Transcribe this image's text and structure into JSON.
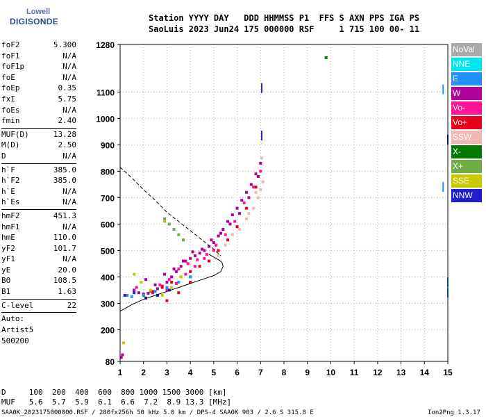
{
  "logo": {
    "line1": "Lowell",
    "line2": "DIGISONDE"
  },
  "header": {
    "row1": "Station YYYY DAY   DDD HHMMSS P1  FFS S AXN PPS IGA PS",
    "row2": "SaoLuis 2023 Jun24 175 000000 RSF     1 715 100 00- 11"
  },
  "params": {
    "group1": [
      {
        "name": "foF2",
        "value": "5.300"
      },
      {
        "name": "foF1",
        "value": "N/A"
      },
      {
        "name": "foF1p",
        "value": "N/A"
      },
      {
        "name": "foE",
        "value": "N/A"
      },
      {
        "name": "foEp",
        "value": "0.35"
      },
      {
        "name": "fxI",
        "value": "5.75"
      },
      {
        "name": "foEs",
        "value": "N/A"
      },
      {
        "name": "fmin",
        "value": "2.40"
      }
    ],
    "group2": [
      {
        "name": "MUF(D)",
        "value": "13.28"
      },
      {
        "name": "M(D)",
        "value": "2.50"
      },
      {
        "name": "D",
        "value": "N/A"
      }
    ],
    "group3": [
      {
        "name": "h`F",
        "value": "385.0"
      },
      {
        "name": "h`F2",
        "value": "385.0"
      },
      {
        "name": "h`E",
        "value": "N/A"
      },
      {
        "name": "h`Es",
        "value": "N/A"
      }
    ],
    "group4": [
      {
        "name": "hmF2",
        "value": "451.3"
      },
      {
        "name": "hmF1",
        "value": "N/A"
      },
      {
        "name": "hmE",
        "value": "110.0"
      },
      {
        "name": "yF2",
        "value": "101.7"
      },
      {
        "name": "yF1",
        "value": "N/A"
      },
      {
        "name": "yE",
        "value": "20.0"
      },
      {
        "name": "B0",
        "value": "108.5"
      },
      {
        "name": "B1",
        "value": "1.63"
      }
    ],
    "clevel": {
      "name": "C-level",
      "value": "22"
    },
    "auto": [
      "Auto:",
      "Artist5",
      "500200"
    ]
  },
  "legend": [
    {
      "label": "NoVal",
      "color": "#a9a9a9"
    },
    {
      "label": "NNE",
      "color": "#00e5ee"
    },
    {
      "label": "E",
      "color": "#1e90ff"
    },
    {
      "label": "W",
      "color": "#b0009a"
    },
    {
      "label": "Vo-",
      "color": "#ff1493"
    },
    {
      "label": "Vo+",
      "color": "#e8001c"
    },
    {
      "label": "SSW",
      "color": "#f4b6b0"
    },
    {
      "label": "X-",
      "color": "#007a00"
    },
    {
      "label": "X+",
      "color": "#6cad45"
    },
    {
      "label": "SSE",
      "color": "#c8c800"
    },
    {
      "label": "NNW",
      "color": "#1f1fcf"
    }
  ],
  "footer": {
    "d_row": "D     100  200  400  600  800 1000 1500 3000 [km]",
    "muf_row": "MUF   5.6  5.7  5.9  6.1  6.6  7.2  8.9 13.3 [MHz]",
    "info_left": "SAA0K_2023175000000.RSF / 280fx256h 50 kHz 5.0 km / DPS-4 SAA0K 903 / 2.6 S 315.8 E",
    "info_right": "Ion2Png 1.3.17"
  },
  "chart_data": {
    "type": "scatter",
    "title": "",
    "xlabel": "",
    "ylabel": "",
    "xlim": [
      1,
      15
    ],
    "ylim": [
      80,
      1280
    ],
    "xticks": [
      1,
      2,
      3,
      4,
      5,
      6,
      7,
      8,
      9,
      10,
      11,
      12,
      13,
      14,
      15
    ],
    "yticks": [
      80,
      200,
      300,
      400,
      500,
      600,
      700,
      800,
      900,
      1000,
      1100,
      1280
    ],
    "grid": "dashed",
    "series": [
      {
        "name": "W",
        "x": [
          1.6,
          1.8,
          2.0,
          2.2,
          2.4,
          2.6,
          2.8,
          3.0,
          3.2,
          3.4,
          3.6,
          3.8,
          4.0,
          4.2,
          4.4,
          4.6,
          4.8,
          5.0,
          5.2,
          5.4,
          5.6,
          5.8,
          6.0,
          6.2,
          6.4,
          6.6,
          6.8,
          7.0,
          2.1,
          2.5,
          2.9,
          3.3,
          3.7,
          4.1,
          4.5,
          4.9,
          5.3,
          5.7,
          6.1,
          6.5,
          6.9,
          1.05,
          1.1
        ],
        "y": [
          350,
          340,
          335,
          338,
          345,
          355,
          365,
          380,
          400,
          420,
          440,
          460,
          470,
          480,
          490,
          500,
          515,
          530,
          555,
          580,
          610,
          635,
          660,
          690,
          720,
          750,
          790,
          830,
          390,
          370,
          410,
          430,
          460,
          495,
          505,
          540,
          565,
          600,
          640,
          700,
          780,
          95,
          105
        ]
      },
      {
        "name": "Vo-",
        "x": [
          1.7,
          2.3,
          2.7,
          3.1,
          3.5,
          3.9,
          4.3,
          4.7,
          5.1,
          5.5,
          5.9,
          6.3,
          6.7,
          7.0,
          3.0,
          3.4,
          3.8,
          4.2,
          4.6,
          5.0
        ],
        "y": [
          360,
          345,
          370,
          390,
          430,
          450,
          465,
          485,
          520,
          560,
          610,
          680,
          740,
          800,
          350,
          375,
          410,
          440,
          470,
          500
        ]
      },
      {
        "name": "Vo+",
        "x": [
          2.0,
          2.4,
          2.8,
          3.2,
          3.6,
          4.0,
          4.4,
          4.8,
          5.2,
          5.6,
          6.0,
          6.4,
          6.8,
          3.0,
          3.5,
          4.0
        ],
        "y": [
          330,
          340,
          360,
          380,
          400,
          420,
          440,
          460,
          500,
          540,
          590,
          660,
          740,
          310,
          340,
          380
        ]
      },
      {
        "name": "SSW",
        "x": [
          5.2,
          5.5,
          5.8,
          6.1,
          6.4,
          6.7,
          6.9,
          7.0,
          7.1,
          6.5,
          6.8,
          7.05
        ],
        "y": [
          480,
          520,
          560,
          580,
          620,
          660,
          700,
          730,
          760,
          640,
          720,
          850
        ]
      },
      {
        "name": "E",
        "x": [
          1.3,
          1.5,
          2.0,
          2.5,
          3.0,
          3.5,
          4.0,
          14.8,
          14.8,
          15.0,
          15.0
        ],
        "y": [
          330,
          325,
          330,
          345,
          360,
          380,
          400,
          1110,
          740,
          380,
          340
        ]
      },
      {
        "name": "NNW",
        "x": [
          1.2,
          1.6,
          2.1,
          2.6,
          3.1,
          7.05,
          7.05,
          15.0
        ],
        "y": [
          330,
          340,
          320,
          330,
          350,
          935,
          1115,
          920
        ]
      },
      {
        "name": "SSE",
        "x": [
          1.6,
          1.9,
          2.3,
          2.8,
          3.2,
          3.6,
          1.15,
          2.9
        ],
        "y": [
          410,
          380,
          350,
          330,
          360,
          400,
          150,
          610
        ]
      },
      {
        "name": "X+",
        "x": [
          2.9,
          3.1,
          3.3,
          3.5,
          3.7
        ],
        "y": [
          620,
          600,
          580,
          560,
          540
        ]
      },
      {
        "name": "X-",
        "x": [
          9.8
        ],
        "y": [
          1230
        ]
      }
    ],
    "trace_dashed": {
      "x": [
        1.0,
        1.5,
        2.0,
        2.5,
        3.0,
        3.5,
        4.0,
        4.5,
        5.0,
        5.3
      ],
      "y": [
        815,
        775,
        730,
        690,
        645,
        610,
        575,
        540,
        505,
        480
      ]
    },
    "profile_solid": {
      "x": [
        1.0,
        1.5,
        2.0,
        2.5,
        3.0,
        3.5,
        4.0,
        4.5,
        5.0,
        5.3,
        5.4,
        5.35,
        5.2,
        5.0,
        4.8
      ],
      "y": [
        270,
        295,
        315,
        330,
        345,
        360,
        375,
        390,
        405,
        420,
        440,
        455,
        465,
        475,
        485
      ]
    }
  }
}
